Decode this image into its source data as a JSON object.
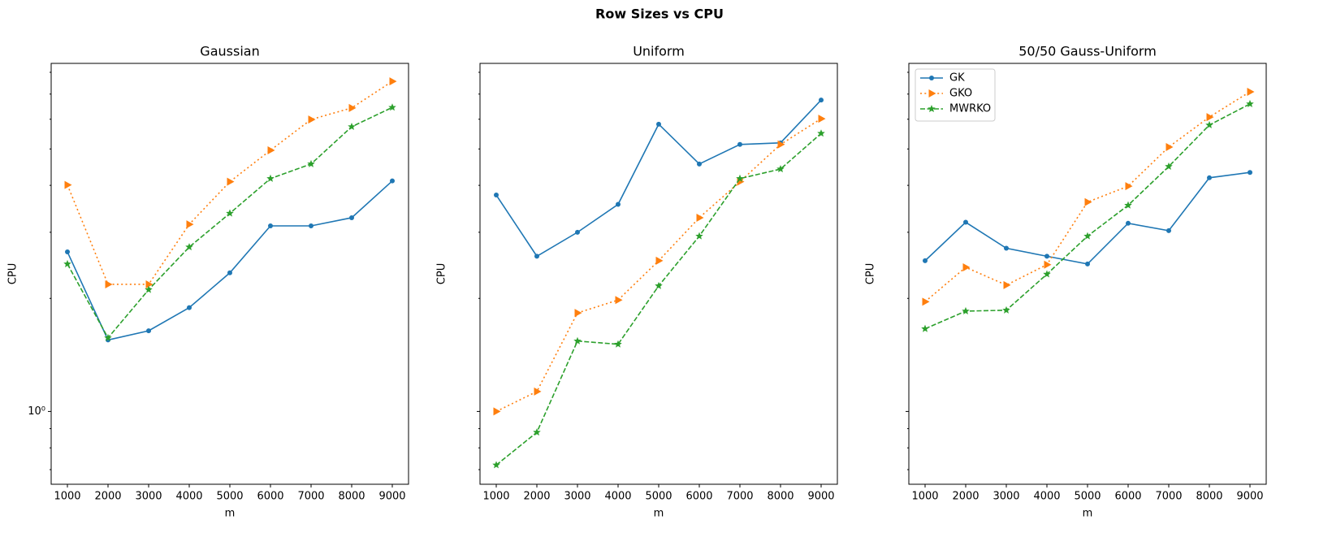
{
  "title": "Row Sizes vs CPU",
  "sharey": true,
  "chart_data": [
    {
      "type": "line",
      "title": "Gaussian",
      "xlabel": "m",
      "ylabel": "CPU",
      "yscale": "log",
      "x": [
        1000,
        2000,
        3000,
        4000,
        5000,
        6000,
        7000,
        8000,
        9000
      ],
      "xlim": [
        600,
        9400
      ],
      "xticks": [
        1000,
        2000,
        3000,
        4000,
        5000,
        6000,
        7000,
        8000,
        9000
      ],
      "ylim": [
        0.64,
        8.45
      ],
      "yticks": [
        {
          "value": 1,
          "label": "10⁰"
        }
      ],
      "yminorticks": [
        0.7,
        0.8,
        0.9,
        2,
        3,
        4,
        5,
        6,
        7,
        8
      ],
      "series": [
        {
          "name": "GK",
          "color": "#1f77b4",
          "linestyle": "solid",
          "marker": "circle",
          "values": [
            2.66,
            1.55,
            1.64,
            1.89,
            2.34,
            3.12,
            3.12,
            3.28,
            4.11
          ]
        },
        {
          "name": "GKO",
          "color": "#ff7f0e",
          "linestyle": "dotted",
          "marker": "triangle-right",
          "values": [
            4.01,
            2.18,
            2.18,
            3.15,
            4.09,
            4.96,
            5.99,
            6.43,
            7.57
          ]
        },
        {
          "name": "MWRKO",
          "color": "#2ca02c",
          "linestyle": "dashed",
          "marker": "star",
          "values": [
            2.47,
            1.57,
            2.11,
            2.74,
            3.37,
            4.17,
            4.56,
            5.73,
            6.45
          ]
        }
      ]
    },
    {
      "type": "line",
      "title": "Uniform",
      "xlabel": "m",
      "ylabel": "CPU",
      "yscale": "log",
      "x": [
        1000,
        2000,
        3000,
        4000,
        5000,
        6000,
        7000,
        8000,
        9000
      ],
      "xlim": [
        600,
        9400
      ],
      "xticks": [
        1000,
        2000,
        3000,
        4000,
        5000,
        6000,
        7000,
        8000,
        9000
      ],
      "ylim": [
        0.64,
        8.45
      ],
      "yticks": [
        {
          "value": 1,
          "label": "10⁰"
        }
      ],
      "yminorticks": [
        0.7,
        0.8,
        0.9,
        2,
        3,
        4,
        5,
        6,
        7,
        8
      ],
      "series": [
        {
          "name": "GK",
          "color": "#1f77b4",
          "linestyle": "solid",
          "marker": "circle",
          "values": [
            3.77,
            2.59,
            3.0,
            3.56,
            5.82,
            4.56,
            5.14,
            5.19,
            6.75
          ]
        },
        {
          "name": "GKO",
          "color": "#ff7f0e",
          "linestyle": "dotted",
          "marker": "triangle-right",
          "values": [
            1.0,
            1.13,
            1.83,
            1.98,
            2.52,
            3.28,
            4.09,
            5.14,
            6.02
          ]
        },
        {
          "name": "MWRKO",
          "color": "#2ca02c",
          "linestyle": "dashed",
          "marker": "star",
          "values": [
            0.72,
            0.88,
            1.54,
            1.51,
            2.16,
            2.93,
            4.17,
            4.42,
            5.5
          ]
        }
      ]
    },
    {
      "type": "line",
      "title": "50/50 Gauss-Uniform",
      "xlabel": "m",
      "ylabel": "CPU",
      "yscale": "log",
      "legend": "upper left",
      "x": [
        1000,
        2000,
        3000,
        4000,
        5000,
        6000,
        7000,
        8000,
        9000
      ],
      "xlim": [
        600,
        9400
      ],
      "xticks": [
        1000,
        2000,
        3000,
        4000,
        5000,
        6000,
        7000,
        8000,
        9000
      ],
      "ylim": [
        0.64,
        8.45
      ],
      "yticks": [
        {
          "value": 1,
          "label": "10⁰"
        }
      ],
      "yminorticks": [
        0.7,
        0.8,
        0.9,
        2,
        3,
        4,
        5,
        6,
        7,
        8
      ],
      "series": [
        {
          "name": "GK",
          "color": "#1f77b4",
          "linestyle": "solid",
          "marker": "circle",
          "values": [
            2.52,
            3.19,
            2.72,
            2.59,
            2.47,
            3.17,
            3.03,
            4.19,
            4.33
          ]
        },
        {
          "name": "GKO",
          "color": "#ff7f0e",
          "linestyle": "dotted",
          "marker": "triangle-right",
          "values": [
            1.96,
            2.42,
            2.17,
            2.46,
            3.61,
            3.98,
            5.06,
            6.08,
            7.1
          ]
        },
        {
          "name": "MWRKO",
          "color": "#2ca02c",
          "linestyle": "dashed",
          "marker": "star",
          "values": [
            1.66,
            1.85,
            1.86,
            2.32,
            2.93,
            3.54,
            4.49,
            5.79,
            6.59
          ]
        }
      ]
    }
  ]
}
